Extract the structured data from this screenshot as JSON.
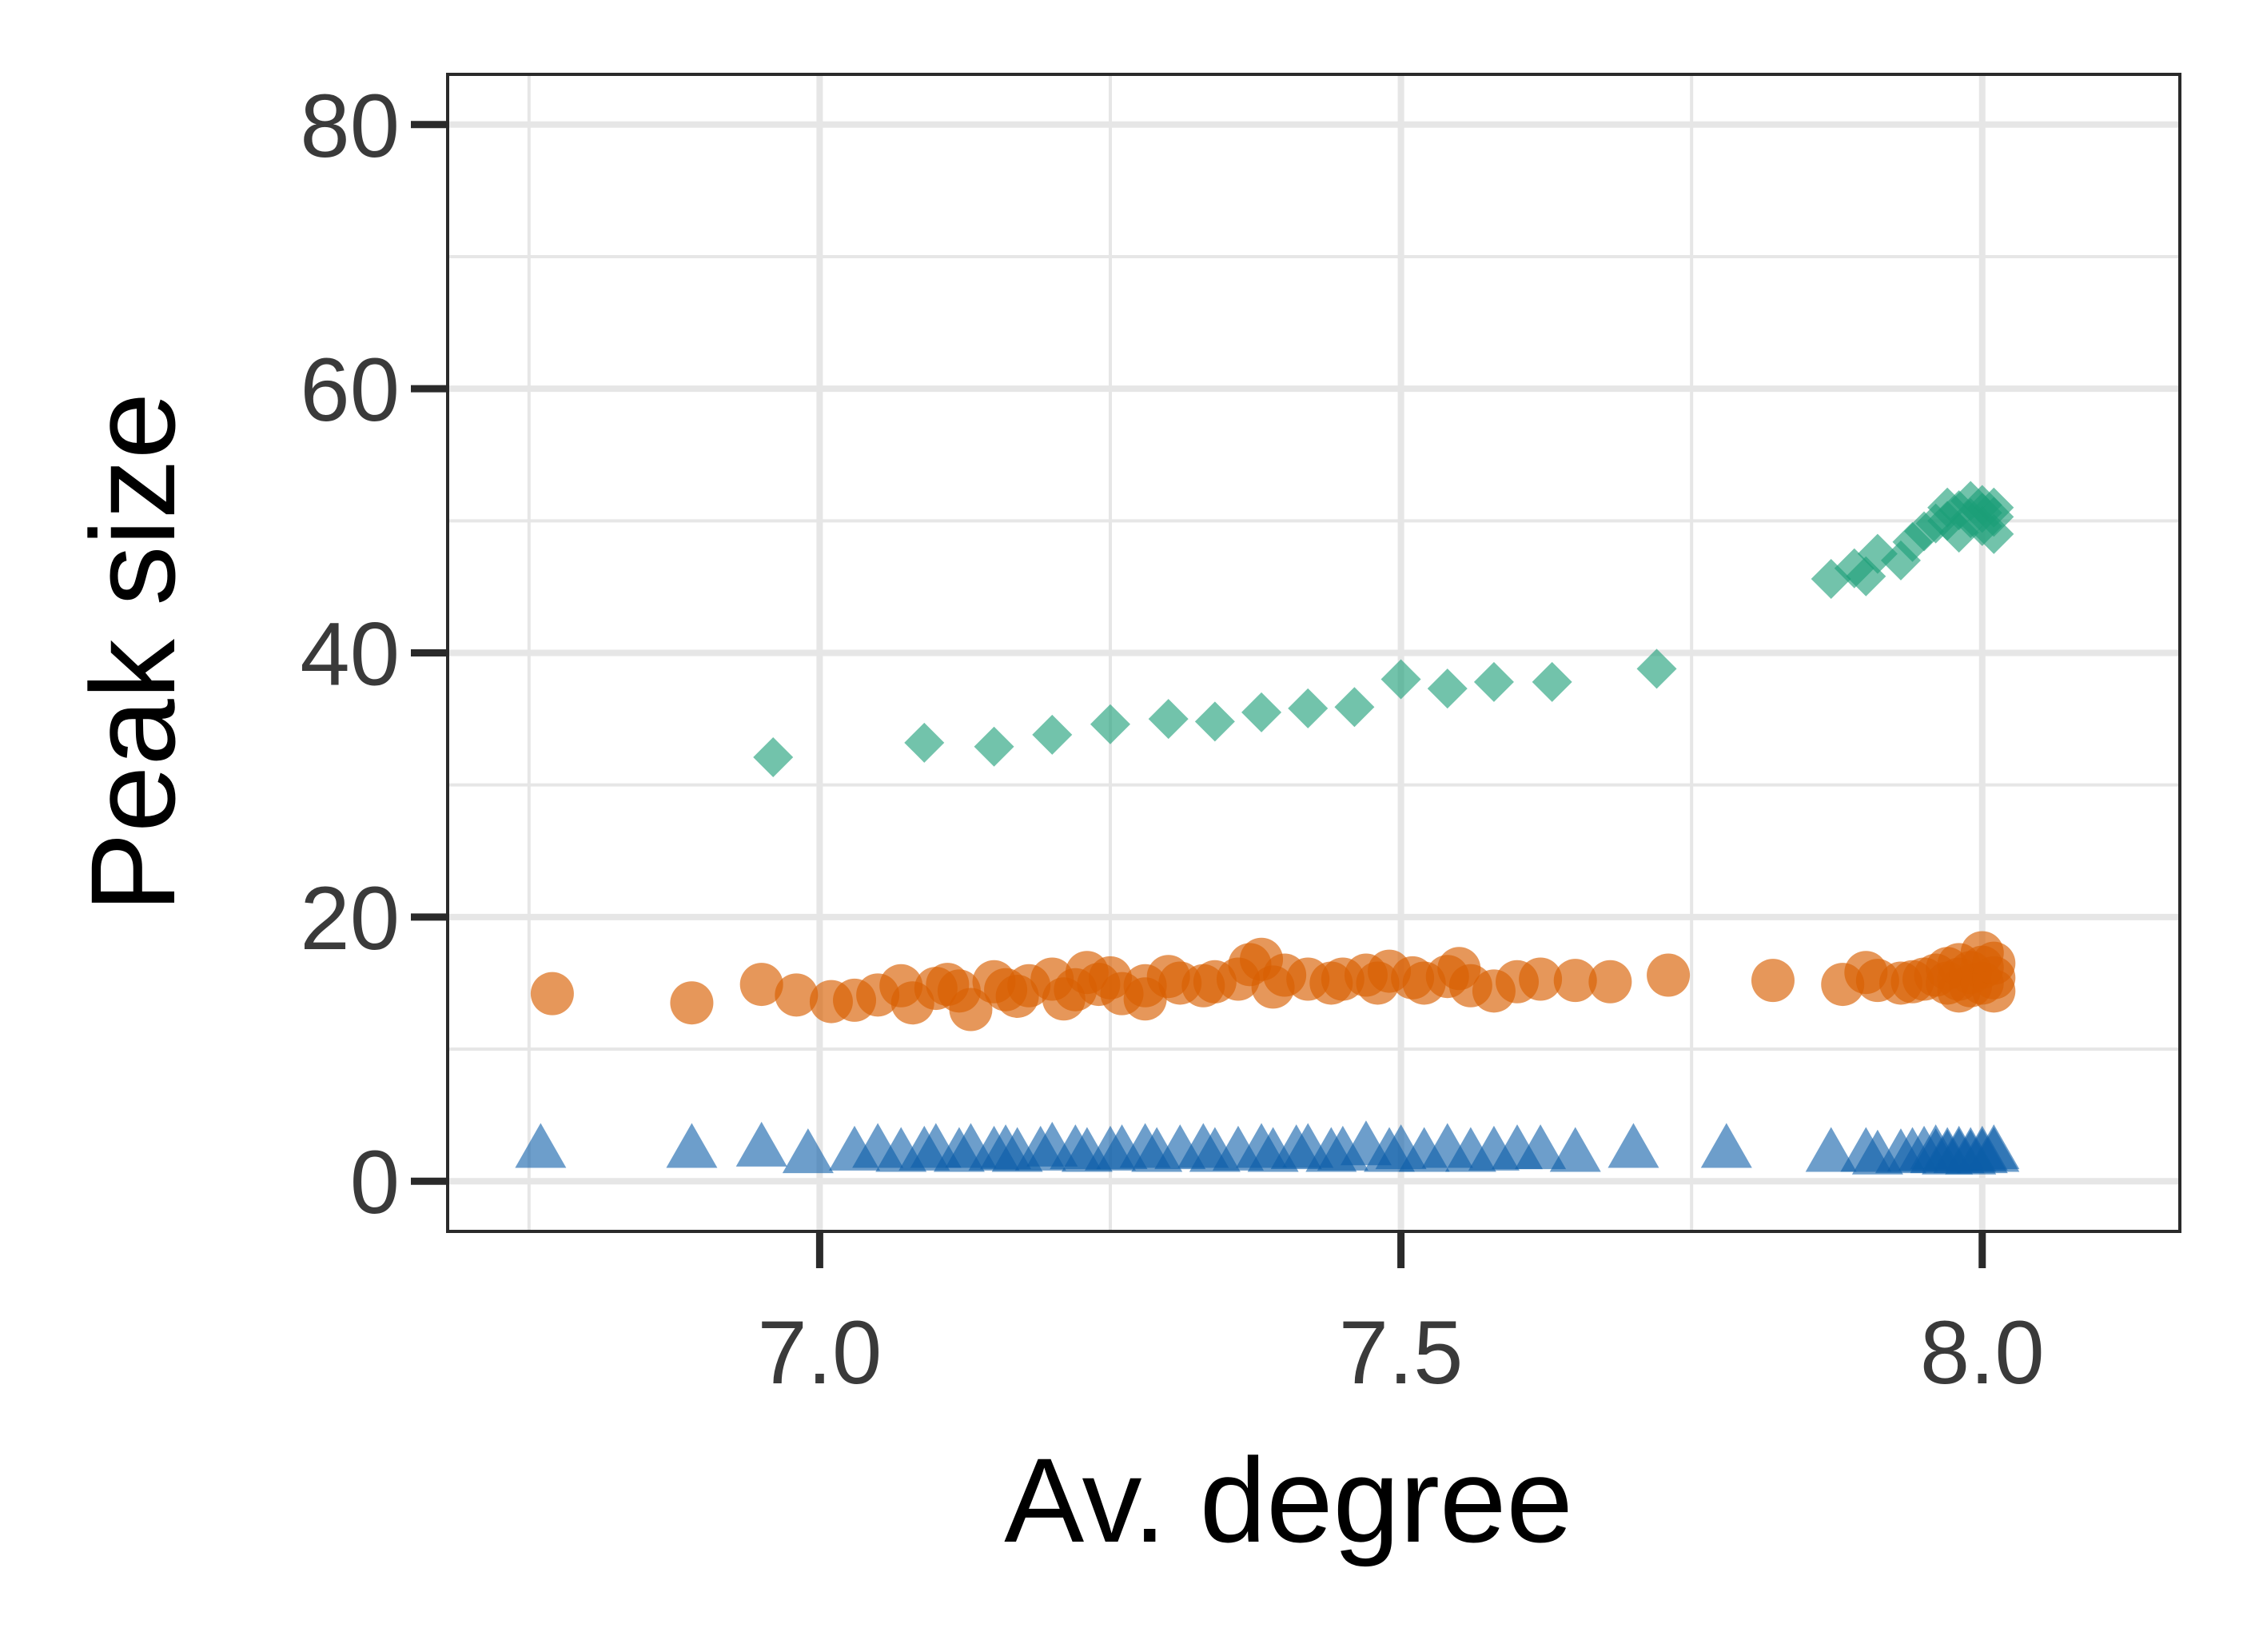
{
  "chart_data": {
    "type": "scatter",
    "title": "",
    "xlabel": "Av. degree",
    "ylabel": "Peak size",
    "xlim": [
      6.68,
      8.17
    ],
    "ylim": [
      -3.8,
      83.8
    ],
    "x_ticks": [
      7.0,
      7.5,
      8.0
    ],
    "x_tick_labels": [
      "7.0",
      "7.5",
      "8.0"
    ],
    "x_minor_grid": [
      6.75,
      7.25,
      7.75
    ],
    "y_ticks": [
      0,
      20,
      40,
      60,
      80
    ],
    "y_tick_labels": [
      "0",
      "20",
      "40",
      "60",
      "80"
    ],
    "y_minor_grid": [
      10,
      30,
      50,
      70
    ],
    "grid": true,
    "legend": "none",
    "series": [
      {
        "marker": "diamond",
        "color": "#1b9e77",
        "points": [
          [
            6.96,
            32.1
          ],
          [
            7.09,
            33.2
          ],
          [
            7.15,
            32.9
          ],
          [
            7.2,
            33.8
          ],
          [
            7.25,
            34.6
          ],
          [
            7.3,
            35.0
          ],
          [
            7.34,
            34.8
          ],
          [
            7.38,
            35.5
          ],
          [
            7.42,
            35.8
          ],
          [
            7.46,
            35.9
          ],
          [
            7.5,
            38.0
          ],
          [
            7.54,
            37.3
          ],
          [
            7.58,
            37.8
          ],
          [
            7.63,
            37.8
          ],
          [
            7.72,
            38.8
          ],
          [
            7.87,
            45.6
          ],
          [
            7.89,
            46.4
          ],
          [
            7.9,
            45.8
          ],
          [
            7.91,
            47.5
          ],
          [
            7.93,
            47.0
          ],
          [
            7.94,
            48.4
          ],
          [
            7.95,
            49.2
          ],
          [
            7.96,
            49.8
          ],
          [
            7.97,
            50.0
          ],
          [
            7.97,
            51.0
          ],
          [
            7.98,
            49.1
          ],
          [
            7.98,
            50.8
          ],
          [
            7.99,
            50.2
          ],
          [
            7.99,
            51.5
          ],
          [
            8.0,
            49.6
          ],
          [
            8.0,
            50.6
          ],
          [
            8.0,
            51.2
          ],
          [
            8.01,
            49.0
          ],
          [
            8.01,
            50.3
          ],
          [
            8.01,
            51.0
          ]
        ]
      },
      {
        "marker": "circle",
        "color": "#d95f02",
        "points": [
          [
            6.77,
            14.2
          ],
          [
            6.89,
            13.5
          ],
          [
            6.95,
            14.9
          ],
          [
            6.98,
            14.1
          ],
          [
            7.01,
            13.6
          ],
          [
            7.03,
            13.7
          ],
          [
            7.05,
            14.1
          ],
          [
            7.07,
            14.8
          ],
          [
            7.08,
            13.5
          ],
          [
            7.1,
            14.6
          ],
          [
            7.11,
            14.9
          ],
          [
            7.12,
            14.4
          ],
          [
            7.13,
            13.0
          ],
          [
            7.15,
            15.1
          ],
          [
            7.16,
            14.5
          ],
          [
            7.17,
            14.0
          ],
          [
            7.18,
            14.8
          ],
          [
            7.2,
            15.3
          ],
          [
            7.21,
            13.8
          ],
          [
            7.22,
            14.5
          ],
          [
            7.23,
            15.8
          ],
          [
            7.24,
            14.9
          ],
          [
            7.25,
            15.4
          ],
          [
            7.26,
            14.2
          ],
          [
            7.28,
            14.8
          ],
          [
            7.28,
            13.8
          ],
          [
            7.3,
            15.5
          ],
          [
            7.31,
            15.0
          ],
          [
            7.33,
            14.8
          ],
          [
            7.34,
            15.1
          ],
          [
            7.36,
            15.3
          ],
          [
            7.37,
            16.4
          ],
          [
            7.38,
            16.8
          ],
          [
            7.39,
            14.7
          ],
          [
            7.4,
            15.6
          ],
          [
            7.42,
            15.3
          ],
          [
            7.44,
            15.0
          ],
          [
            7.45,
            15.3
          ],
          [
            7.47,
            15.6
          ],
          [
            7.48,
            15.0
          ],
          [
            7.49,
            15.9
          ],
          [
            7.51,
            15.4
          ],
          [
            7.52,
            15.0
          ],
          [
            7.54,
            15.5
          ],
          [
            7.55,
            16.1
          ],
          [
            7.56,
            14.8
          ],
          [
            7.58,
            14.4
          ],
          [
            7.6,
            15.1
          ],
          [
            7.62,
            15.3
          ],
          [
            7.65,
            15.2
          ],
          [
            7.68,
            15.1
          ],
          [
            7.73,
            15.6
          ],
          [
            7.82,
            15.2
          ],
          [
            7.88,
            14.9
          ],
          [
            7.9,
            15.8
          ],
          [
            7.91,
            15.2
          ],
          [
            7.93,
            15.0
          ],
          [
            7.94,
            15.1
          ],
          [
            7.95,
            15.3
          ],
          [
            7.96,
            15.6
          ],
          [
            7.97,
            15.0
          ],
          [
            7.97,
            16.1
          ],
          [
            7.98,
            14.4
          ],
          [
            7.98,
            15.3
          ],
          [
            7.98,
            16.4
          ],
          [
            7.99,
            14.8
          ],
          [
            7.99,
            15.8
          ],
          [
            8.0,
            15.0
          ],
          [
            8.0,
            16.2
          ],
          [
            8.0,
            17.3
          ],
          [
            8.01,
            14.4
          ],
          [
            8.01,
            15.4
          ],
          [
            8.01,
            16.5
          ]
        ]
      },
      {
        "marker": "triangle",
        "color": "#0b5da8",
        "points": [
          [
            6.76,
            2.3
          ],
          [
            6.89,
            2.3
          ],
          [
            6.95,
            2.4
          ],
          [
            6.99,
            1.9
          ],
          [
            7.03,
            2.1
          ],
          [
            7.05,
            2.3
          ],
          [
            7.07,
            2.0
          ],
          [
            7.09,
            2.1
          ],
          [
            7.1,
            2.3
          ],
          [
            7.12,
            2.0
          ],
          [
            7.13,
            2.3
          ],
          [
            7.15,
            2.1
          ],
          [
            7.16,
            2.2
          ],
          [
            7.17,
            2.0
          ],
          [
            7.19,
            2.1
          ],
          [
            7.2,
            2.4
          ],
          [
            7.22,
            2.2
          ],
          [
            7.23,
            2.0
          ],
          [
            7.25,
            2.1
          ],
          [
            7.26,
            2.2
          ],
          [
            7.28,
            2.3
          ],
          [
            7.29,
            2.0
          ],
          [
            7.31,
            2.2
          ],
          [
            7.33,
            2.3
          ],
          [
            7.34,
            2.0
          ],
          [
            7.36,
            2.1
          ],
          [
            7.38,
            2.3
          ],
          [
            7.39,
            2.0
          ],
          [
            7.41,
            2.2
          ],
          [
            7.42,
            2.3
          ],
          [
            7.44,
            2.0
          ],
          [
            7.45,
            2.1
          ],
          [
            7.47,
            2.5
          ],
          [
            7.49,
            2.0
          ],
          [
            7.5,
            2.2
          ],
          [
            7.52,
            2.0
          ],
          [
            7.54,
            2.3
          ],
          [
            7.56,
            2.0
          ],
          [
            7.58,
            2.1
          ],
          [
            7.6,
            2.2
          ],
          [
            7.62,
            2.2
          ],
          [
            7.65,
            2.0
          ],
          [
            7.7,
            2.3
          ],
          [
            7.78,
            2.3
          ],
          [
            7.87,
            2.0
          ],
          [
            7.9,
            2.0
          ],
          [
            7.91,
            1.8
          ],
          [
            7.93,
            1.9
          ],
          [
            7.94,
            2.0
          ],
          [
            7.95,
            2.1
          ],
          [
            7.96,
            1.9
          ],
          [
            7.96,
            2.2
          ],
          [
            7.97,
            1.8
          ],
          [
            7.97,
            2.0
          ],
          [
            7.98,
            2.1
          ],
          [
            7.98,
            1.9
          ],
          [
            7.99,
            2.0
          ],
          [
            7.99,
            1.8
          ],
          [
            8.0,
            2.1
          ],
          [
            8.0,
            1.9
          ],
          [
            8.01,
            2.0
          ],
          [
            8.01,
            2.2
          ]
        ]
      }
    ]
  }
}
